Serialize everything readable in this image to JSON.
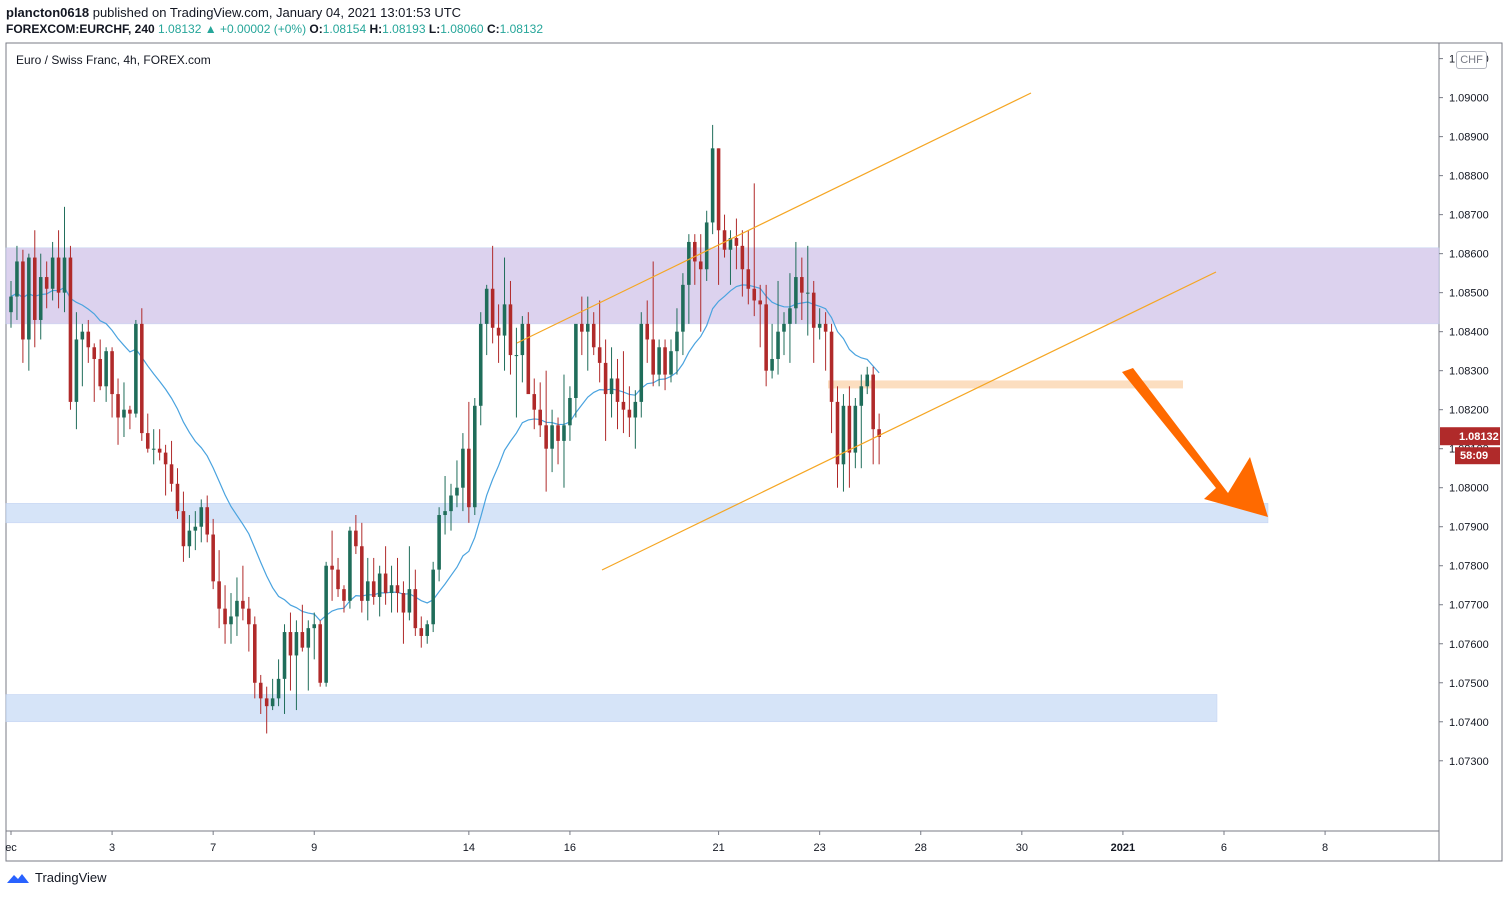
{
  "header": {
    "user": "plancton0618",
    "published": "published on TradingView.com, January 04, 2021 13:01:53 UTC",
    "symbol": "FOREXCOM:EURCHF, 240",
    "last": "1.08132",
    "change_arrow": "▲",
    "change": "+0.00002 (+0%)",
    "o_label": "O:",
    "o": "1.08154",
    "h_label": "H:",
    "h": "1.08193",
    "l_label": "L:",
    "l": "1.08060",
    "c_label": "C:",
    "c": "1.08132"
  },
  "legend": "Euro / Swiss Franc, 4h, FOREX.com",
  "currency_badge": "CHF",
  "price_label": "1.08132",
  "countdown_label": "58:09",
  "footer_logo": "TradingView",
  "colors": {
    "up": "#1f6d5a",
    "down": "#b02a2a",
    "ema": "#4aa3df",
    "trendline": "#f5a623",
    "resistance_zone": "#d6cbec",
    "support_zone": "#cfe0f7",
    "pivot_zone": "#fbd8b5",
    "arrow": "#ff6a00"
  },
  "chart_data": {
    "type": "candlestick",
    "symbol": "FOREXCOM:EURCHF",
    "timeframe": "4h",
    "y_axis": {
      "ticks": [
        "1.09100",
        "1.09000",
        "1.08900",
        "1.08800",
        "1.08700",
        "1.08600",
        "1.08500",
        "1.08400",
        "1.08300",
        "1.08200",
        "1.08100",
        "1.08000",
        "1.07900",
        "1.07800",
        "1.07700",
        "1.07600",
        "1.07500",
        "1.07400",
        "1.07300"
      ],
      "range": [
        1.0712,
        1.0914
      ]
    },
    "x_axis": {
      "ticks": [
        {
          "label": "ec",
          "bar": 0
        },
        {
          "label": "3",
          "bar": 17
        },
        {
          "label": "7",
          "bar": 34
        },
        {
          "label": "9",
          "bar": 51
        },
        {
          "label": "14",
          "bar": 77
        },
        {
          "label": "16",
          "bar": 94
        },
        {
          "label": "21",
          "bar": 119
        },
        {
          "label": "23",
          "bar": 136
        },
        {
          "label": "28",
          "bar": 153
        },
        {
          "label": "30",
          "bar": 170
        },
        {
          "label": "2021",
          "bar": 187
        },
        {
          "label": "6",
          "bar": 204
        },
        {
          "label": "8",
          "bar": 221
        }
      ],
      "bar_count_visible": 241
    },
    "candles": [
      [
        1.0845,
        1.0853,
        1.0841,
        1.0849
      ],
      [
        1.0849,
        1.0862,
        1.0843,
        1.0858
      ],
      [
        1.0858,
        1.0861,
        1.0832,
        1.0838
      ],
      [
        1.0838,
        1.086,
        1.083,
        1.0859
      ],
      [
        1.0859,
        1.0866,
        1.0836,
        1.0843
      ],
      [
        1.0843,
        1.086,
        1.0838,
        1.0854
      ],
      [
        1.0854,
        1.0858,
        1.0846,
        1.0851
      ],
      [
        1.0851,
        1.0863,
        1.0848,
        1.0859
      ],
      [
        1.0859,
        1.0866,
        1.0846,
        1.085
      ],
      [
        1.085,
        1.0872,
        1.0845,
        1.0859
      ],
      [
        1.0859,
        1.0862,
        1.082,
        1.0822
      ],
      [
        1.0822,
        1.0845,
        1.0815,
        1.0838
      ],
      [
        1.0838,
        1.0842,
        1.0826,
        1.084
      ],
      [
        1.084,
        1.0843,
        1.0832,
        1.0836
      ],
      [
        1.0836,
        1.0837,
        1.0822,
        1.0833
      ],
      [
        1.0833,
        1.0838,
        1.0825,
        1.0826
      ],
      [
        1.0826,
        1.0836,
        1.0822,
        1.0835
      ],
      [
        1.0835,
        1.0836,
        1.0818,
        1.0824
      ],
      [
        1.0824,
        1.0828,
        1.0811,
        1.0818
      ],
      [
        1.0818,
        1.0827,
        1.0813,
        1.082
      ],
      [
        1.082,
        1.0821,
        1.0815,
        1.0819
      ],
      [
        1.0819,
        1.0843,
        1.0818,
        1.0842
      ],
      [
        1.0842,
        1.0846,
        1.0812,
        1.0814
      ],
      [
        1.0814,
        1.0819,
        1.0809,
        1.081
      ],
      [
        1.081,
        1.0815,
        1.0806,
        1.081
      ],
      [
        1.081,
        1.0815,
        1.0807,
        1.0809
      ],
      [
        1.0809,
        1.0811,
        1.0798,
        1.0806
      ],
      [
        1.0806,
        1.0812,
        1.0799,
        1.0801
      ],
      [
        1.0801,
        1.0805,
        1.0792,
        1.0794
      ],
      [
        1.0794,
        1.0799,
        1.0781,
        1.0785
      ],
      [
        1.0785,
        1.0793,
        1.0782,
        1.0789
      ],
      [
        1.0789,
        1.0794,
        1.0784,
        1.079
      ],
      [
        1.079,
        1.0797,
        1.0786,
        1.0795
      ],
      [
        1.0795,
        1.0798,
        1.0786,
        1.0788
      ],
      [
        1.0788,
        1.0792,
        1.0774,
        1.0776
      ],
      [
        1.0776,
        1.0784,
        1.0764,
        1.0769
      ],
      [
        1.0769,
        1.0775,
        1.076,
        1.0765
      ],
      [
        1.0765,
        1.0773,
        1.076,
        1.0767
      ],
      [
        1.0767,
        1.0777,
        1.0762,
        1.0771
      ],
      [
        1.0771,
        1.078,
        1.0766,
        1.0769
      ],
      [
        1.0769,
        1.0772,
        1.0758,
        1.0765
      ],
      [
        1.0765,
        1.0767,
        1.0746,
        1.075
      ],
      [
        1.075,
        1.0752,
        1.0742,
        1.0746
      ],
      [
        1.0746,
        1.0749,
        1.0737,
        1.0744
      ],
      [
        1.0744,
        1.0751,
        1.0743,
        1.0746
      ],
      [
        1.0746,
        1.0756,
        1.0744,
        1.0751
      ],
      [
        1.0751,
        1.0765,
        1.0742,
        1.0763
      ],
      [
        1.0763,
        1.0768,
        1.0748,
        1.0757
      ],
      [
        1.0757,
        1.0766,
        1.0743,
        1.0763
      ],
      [
        1.0763,
        1.077,
        1.0758,
        1.0759
      ],
      [
        1.0759,
        1.0766,
        1.0748,
        1.0764
      ],
      [
        1.0764,
        1.0768,
        1.0756,
        1.0765
      ],
      [
        1.0765,
        1.0766,
        1.0749,
        1.075
      ],
      [
        1.075,
        1.0781,
        1.0749,
        1.078
      ],
      [
        1.078,
        1.0789,
        1.0771,
        1.0779
      ],
      [
        1.0779,
        1.0782,
        1.0772,
        1.0774
      ],
      [
        1.0774,
        1.0775,
        1.0768,
        1.0771
      ],
      [
        1.0771,
        1.079,
        1.0769,
        1.0789
      ],
      [
        1.0789,
        1.0793,
        1.0783,
        1.0785
      ],
      [
        1.0785,
        1.0791,
        1.0768,
        1.0771
      ],
      [
        1.0771,
        1.0782,
        1.0766,
        1.0776
      ],
      [
        1.0776,
        1.0782,
        1.077,
        1.0772
      ],
      [
        1.0772,
        1.078,
        1.0767,
        1.0778
      ],
      [
        1.0778,
        1.0785,
        1.077,
        1.0773
      ],
      [
        1.0773,
        1.078,
        1.0768,
        1.0775
      ],
      [
        1.0775,
        1.0782,
        1.0768,
        1.0773
      ],
      [
        1.0773,
        1.0776,
        1.076,
        1.0768
      ],
      [
        1.0768,
        1.0785,
        1.0766,
        1.0774
      ],
      [
        1.0774,
        1.0779,
        1.0762,
        1.0764
      ],
      [
        1.0764,
        1.0767,
        1.0759,
        1.0762
      ],
      [
        1.0762,
        1.0766,
        1.076,
        1.0765
      ],
      [
        1.0765,
        1.0781,
        1.0763,
        1.0779
      ],
      [
        1.0779,
        1.0795,
        1.0776,
        1.0793
      ],
      [
        1.0793,
        1.0803,
        1.0788,
        1.0794
      ],
      [
        1.0794,
        1.0801,
        1.0789,
        1.0798
      ],
      [
        1.0798,
        1.0807,
        1.0795,
        1.08
      ],
      [
        1.08,
        1.0814,
        1.0794,
        1.081
      ],
      [
        1.081,
        1.0822,
        1.0791,
        1.0795
      ],
      [
        1.0795,
        1.0823,
        1.0793,
        1.0821
      ],
      [
        1.0821,
        1.0845,
        1.0816,
        1.0842
      ],
      [
        1.0842,
        1.0852,
        1.0834,
        1.0851
      ],
      [
        1.0851,
        1.0862,
        1.0837,
        1.0841
      ],
      [
        1.0841,
        1.0847,
        1.0832,
        1.0839
      ],
      [
        1.0839,
        1.0859,
        1.083,
        1.0847
      ],
      [
        1.0847,
        1.0853,
        1.0829,
        1.0834
      ],
      [
        1.0834,
        1.0841,
        1.0818,
        1.0834
      ],
      [
        1.0834,
        1.0844,
        1.0827,
        1.0842
      ],
      [
        1.0842,
        1.0845,
        1.0825,
        1.0824
      ],
      [
        1.0824,
        1.0828,
        1.0815,
        1.082
      ],
      [
        1.082,
        1.0827,
        1.0813,
        1.0816
      ],
      [
        1.0816,
        1.083,
        1.0799,
        1.081
      ],
      [
        1.081,
        1.082,
        1.0804,
        1.0816
      ],
      [
        1.0816,
        1.0818,
        1.0806,
        1.0812
      ],
      [
        1.0812,
        1.0829,
        1.08,
        1.0816
      ],
      [
        1.0816,
        1.0826,
        1.0812,
        1.0823
      ],
      [
        1.0823,
        1.084,
        1.0818,
        1.0842
      ],
      [
        1.0842,
        1.0849,
        1.0834,
        1.084
      ],
      [
        1.084,
        1.0849,
        1.083,
        1.0842
      ],
      [
        1.0842,
        1.0845,
        1.0834,
        1.0836
      ],
      [
        1.0836,
        1.0848,
        1.0827,
        1.0832
      ],
      [
        1.0832,
        1.0838,
        1.0812,
        1.0824
      ],
      [
        1.0824,
        1.0836,
        1.0818,
        1.0828
      ],
      [
        1.0828,
        1.0833,
        1.0815,
        1.0822
      ],
      [
        1.0822,
        1.0835,
        1.0814,
        1.082
      ],
      [
        1.082,
        1.0826,
        1.0813,
        1.0818
      ],
      [
        1.0818,
        1.0825,
        1.081,
        1.0822
      ],
      [
        1.0822,
        1.0845,
        1.0818,
        1.0842
      ],
      [
        1.0842,
        1.0848,
        1.0832,
        1.0838
      ],
      [
        1.0838,
        1.0858,
        1.0826,
        1.0829
      ],
      [
        1.0829,
        1.0838,
        1.0826,
        1.0836
      ],
      [
        1.0836,
        1.0838,
        1.0825,
        1.0829
      ],
      [
        1.0829,
        1.0838,
        1.0827,
        1.0835
      ],
      [
        1.0835,
        1.0846,
        1.0829,
        1.084
      ],
      [
        1.084,
        1.0855,
        1.0834,
        1.0852
      ],
      [
        1.0852,
        1.0865,
        1.0842,
        1.0863
      ],
      [
        1.0863,
        1.0865,
        1.0852,
        1.0858
      ],
      [
        1.0858,
        1.0865,
        1.084,
        1.0856
      ],
      [
        1.0856,
        1.0871,
        1.0853,
        1.0868
      ],
      [
        1.0868,
        1.0893,
        1.0865,
        1.0887
      ],
      [
        1.0887,
        1.0887,
        1.0852,
        1.0866
      ],
      [
        1.0866,
        1.087,
        1.0859,
        1.0861
      ],
      [
        1.0861,
        1.0866,
        1.0852,
        1.0864
      ],
      [
        1.0864,
        1.0869,
        1.0856,
        1.0862
      ],
      [
        1.0862,
        1.0866,
        1.0849,
        1.0856
      ],
      [
        1.0856,
        1.0866,
        1.0847,
        1.0851
      ],
      [
        1.0851,
        1.0878,
        1.0844,
        1.0848
      ],
      [
        1.0848,
        1.0852,
        1.0836,
        1.0847
      ],
      [
        1.0847,
        1.0852,
        1.0826,
        1.083
      ],
      [
        1.083,
        1.0842,
        1.0828,
        1.0833
      ],
      [
        1.0833,
        1.0853,
        1.0829,
        1.084
      ],
      [
        1.084,
        1.0845,
        1.0834,
        1.0842
      ],
      [
        1.0842,
        1.0855,
        1.0832,
        1.0846
      ],
      [
        1.0846,
        1.0863,
        1.0842,
        1.0854
      ],
      [
        1.0854,
        1.0859,
        1.0843,
        1.085
      ],
      [
        1.085,
        1.0862,
        1.0839,
        1.085
      ],
      [
        1.085,
        1.0853,
        1.0832,
        1.0841
      ],
      [
        1.0841,
        1.0846,
        1.0838,
        1.0842
      ],
      [
        1.0842,
        1.0845,
        1.083,
        1.084
      ],
      [
        1.084,
        1.0842,
        1.0814,
        1.0822
      ],
      [
        1.0822,
        1.0826,
        1.08,
        1.0806
      ],
      [
        1.0806,
        1.0824,
        1.0799,
        1.0821
      ],
      [
        1.0821,
        1.0826,
        1.08,
        1.0809
      ],
      [
        1.0809,
        1.0823,
        1.0805,
        1.0821
      ],
      [
        1.0821,
        1.0829,
        1.0805,
        1.0826
      ],
      [
        1.0826,
        1.0831,
        1.0824,
        1.0829
      ],
      [
        1.0829,
        1.0831,
        1.0806,
        1.0815
      ],
      [
        1.0815,
        1.0819,
        1.0806,
        1.0813
      ]
    ],
    "overlays": {
      "ema": {
        "label": "moving average"
      },
      "trend_channel": {
        "lines": 2,
        "color": "#f5a623"
      },
      "zones": [
        {
          "kind": "resistance",
          "from": 1.0842,
          "to": 1.08615,
          "color": "#d6cbec"
        },
        {
          "kind": "support",
          "from": 1.0791,
          "to": 1.0796,
          "color": "#cfe0f7"
        },
        {
          "kind": "support",
          "from": 1.074,
          "to": 1.0747,
          "color": "#cfe0f7"
        },
        {
          "kind": "pivot",
          "from": 1.08255,
          "to": 1.08275,
          "color": "#fbd8b5"
        }
      ],
      "projection_arrow": {
        "from": 1.0833,
        "to": 1.0796,
        "color": "#ff6a00"
      }
    }
  }
}
